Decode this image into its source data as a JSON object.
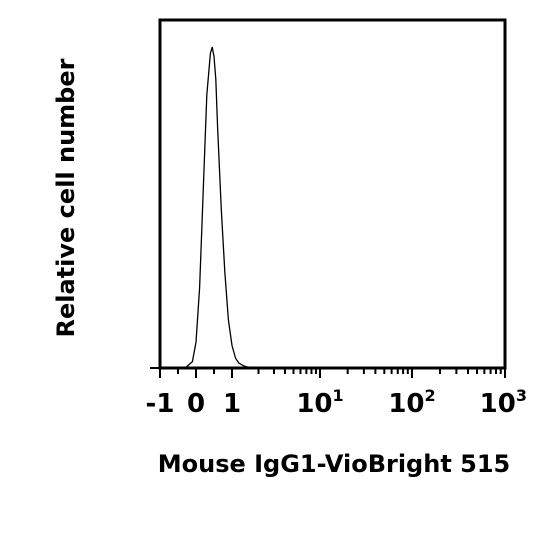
{
  "chart_data": {
    "type": "line",
    "title": "",
    "xlabel": "Mouse IgG1-VioBright 515",
    "ylabel": "Relative cell number",
    "x_scale": "biexponential",
    "xlim": [
      -1,
      1000
    ],
    "ylim": [
      0,
      1
    ],
    "grid": false,
    "legend": "none",
    "line_color": "#000000",
    "x_tick_labels": [
      {
        "value": -1,
        "base": "-1",
        "exp": ""
      },
      {
        "value": 0,
        "base": "0",
        "exp": ""
      },
      {
        "value": 1,
        "base": "1",
        "exp": ""
      },
      {
        "value": 10,
        "base": "10",
        "exp": "1"
      },
      {
        "value": 100,
        "base": "10",
        "exp": "2"
      },
      {
        "value": 1000,
        "base": "10",
        "exp": "3"
      }
    ],
    "series": [
      {
        "x": [
          -0.3,
          -0.1,
          0.0,
          0.1,
          0.2,
          0.3,
          0.4,
          0.45,
          0.5,
          0.55,
          0.6,
          0.7,
          0.8,
          0.9,
          1.0,
          1.1,
          1.2,
          1.4,
          1.7
        ],
        "y": [
          0.0,
          0.02,
          0.08,
          0.25,
          0.55,
          0.85,
          0.98,
          1.0,
          0.97,
          0.9,
          0.75,
          0.5,
          0.3,
          0.15,
          0.07,
          0.03,
          0.015,
          0.005,
          0.0
        ]
      }
    ]
  }
}
